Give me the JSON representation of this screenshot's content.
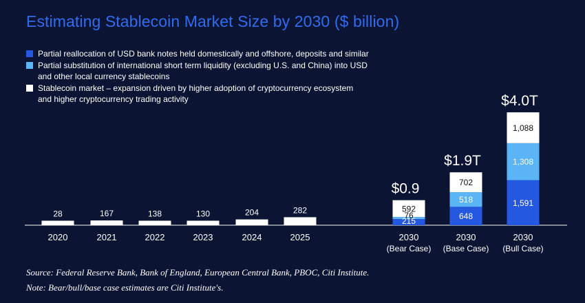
{
  "title": "Estimating Stablecoin Market Size by 2030 ($ billion)",
  "colors": {
    "background": "#0b1433",
    "title": "#2f6cf0",
    "dark_blue": "#2458e0",
    "light_blue": "#5ab4f5",
    "white": "#ffffff"
  },
  "legend": [
    {
      "text": "Partial reallocation of USD bank notes held domestically and offshore, deposits and similar",
      "color": "#2458e0"
    },
    {
      "text": "Partial substitution of international short term liquidity (excluding U.S. and China) into USD\nand other local currency stablecoins",
      "color": "#5ab4f5"
    },
    {
      "text": "Stablecoin market – expansion driven by higher adoption of cryptocurrency ecosystem\nand higher cryptocurrency trading activity",
      "color": "#ffffff"
    }
  ],
  "chart_data": {
    "type": "bar",
    "stacked": true,
    "title": "Estimating Stablecoin Market Size by 2030 ($ billion)",
    "historical": {
      "categories": [
        "2020",
        "2021",
        "2022",
        "2023",
        "2024",
        "2025"
      ],
      "values": [
        28,
        167,
        138,
        130,
        204,
        282
      ],
      "labels": [
        "28",
        "167",
        "138",
        "130",
        "204",
        "282"
      ]
    },
    "scenarios": {
      "categories": [
        {
          "year": "2030",
          "case": "(Bear Case)"
        },
        {
          "year": "2030",
          "case": "(Base Case)"
        },
        {
          "year": "2030",
          "case": "(Bull Case)"
        }
      ],
      "totals": [
        "$0.9",
        "$1.9T",
        "$4.0T"
      ],
      "series": [
        {
          "values": [
            215,
            648,
            1591
          ],
          "labels": [
            "215",
            "648",
            "1,591"
          ],
          "color": "#2458e0",
          "label_color": "#ffffff"
        },
        {
          "values": [
            76,
            518,
            1308
          ],
          "labels": [
            "76",
            "518",
            "1,308"
          ],
          "color": "#5ab4f5",
          "label_color": "#ffffff"
        },
        {
          "values": [
            592,
            702,
            1088
          ],
          "labels": [
            "592",
            "702",
            "1,088"
          ],
          "color": "#ffffff",
          "label_color": "#111111"
        }
      ]
    }
  },
  "footnotes": {
    "source": "Source: Federal Reserve Bank, Bank of England, European Central Bank, PBOC, Citi Institute.",
    "note": "Note: Bear/bull/base case estimates are Citi Institute's."
  }
}
